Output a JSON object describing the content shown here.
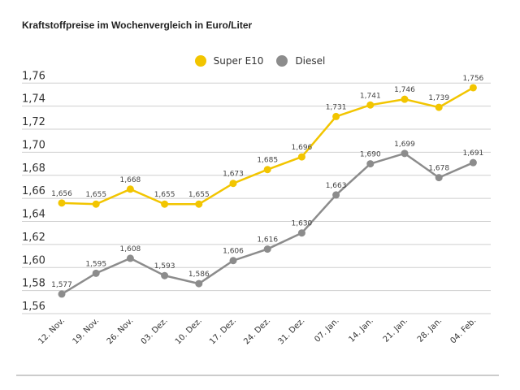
{
  "chart_data": {
    "type": "line",
    "title": "Kraftstoffpreise im Wochenvergleich in Euro/Liter",
    "categories": [
      "12. Nov.",
      "19. Nov.",
      "26. Nov.",
      "03. Dez.",
      "10. Dez.",
      "17. Dez.",
      "24. Dez.",
      "31. Dez.",
      "07. Jan.",
      "14. Jan.",
      "21. Jan.",
      "28. Jan.",
      "04. Feb."
    ],
    "series": [
      {
        "name": "Super E10",
        "color": "#f2c500",
        "values": [
          1.656,
          1.655,
          1.668,
          1.655,
          1.655,
          1.673,
          1.685,
          1.696,
          1.731,
          1.741,
          1.746,
          1.739,
          1.756
        ],
        "labels": [
          "1,656",
          "1,655",
          "1,668",
          "1,655",
          "1,655",
          "1,673",
          "1,685",
          "1,696",
          "1,731",
          "1,741",
          "1,746",
          "1,739",
          "1,756"
        ]
      },
      {
        "name": "Diesel",
        "color": "#8c8c8c",
        "values": [
          1.577,
          1.595,
          1.608,
          1.593,
          1.586,
          1.606,
          1.616,
          1.63,
          1.663,
          1.69,
          1.699,
          1.678,
          1.691
        ],
        "labels": [
          "1,577",
          "1,595",
          "1,608",
          "1,593",
          "1,586",
          "1,606",
          "1,616",
          "1,630",
          "1,663",
          "1,690",
          "1,699",
          "1,678",
          "1,691"
        ]
      }
    ],
    "yticks": [
      "1,56",
      "1,58",
      "1,60",
      "1,62",
      "1,64",
      "1,66",
      "1,68",
      "1,70",
      "1,72",
      "1,74",
      "1,76"
    ],
    "ylim": [
      1.56,
      1.76
    ],
    "xlabel": "",
    "ylabel": "",
    "grid": true,
    "legend": "top-center"
  }
}
